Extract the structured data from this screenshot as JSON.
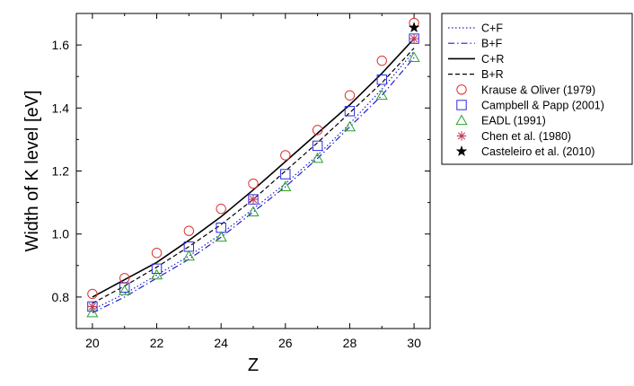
{
  "chart_data": {
    "type": "line",
    "xlabel": "Z",
    "ylabel": "Width of K level [eV]",
    "xlim": [
      19.5,
      30.5
    ],
    "ylim": [
      0.7,
      1.7
    ],
    "xticks": [
      "20",
      "22",
      "24",
      "26",
      "28",
      "30"
    ],
    "yticks": [
      "0.8",
      "1.0",
      "1.2",
      "1.4",
      "1.6"
    ],
    "grid": false,
    "legend_position": "outside-top-right",
    "x": [
      20,
      21,
      22,
      23,
      24,
      25,
      26,
      27,
      28,
      29,
      30
    ],
    "series": [
      {
        "name": "C+F",
        "kind": "line",
        "style": "dotted",
        "color": "#1f1fcc",
        "values": [
          0.76,
          0.81,
          0.87,
          0.93,
          1.0,
          1.08,
          1.16,
          1.25,
          1.35,
          1.46,
          1.58
        ]
      },
      {
        "name": "B+F",
        "kind": "line",
        "style": "dashdot",
        "color": "#1f1fcc",
        "values": [
          0.75,
          0.8,
          0.86,
          0.92,
          0.99,
          1.07,
          1.15,
          1.24,
          1.34,
          1.44,
          1.56
        ]
      },
      {
        "name": "C+R",
        "kind": "line",
        "style": "solid",
        "color": "#000000",
        "values": [
          0.8,
          0.855,
          0.91,
          0.98,
          1.055,
          1.14,
          1.23,
          1.32,
          1.41,
          1.51,
          1.62
        ]
      },
      {
        "name": "B+R",
        "kind": "line",
        "style": "dashed",
        "color": "#000000",
        "values": [
          0.78,
          0.835,
          0.895,
          0.96,
          1.03,
          1.11,
          1.2,
          1.29,
          1.385,
          1.48,
          1.59
        ]
      },
      {
        "name": "Krause & Oliver (1979)",
        "kind": "marker",
        "marker": "circle",
        "color": "#e03030",
        "x": [
          20,
          21,
          22,
          23,
          24,
          25,
          26,
          27,
          28,
          29,
          30
        ],
        "values": [
          0.81,
          0.86,
          0.94,
          1.01,
          1.08,
          1.16,
          1.25,
          1.33,
          1.44,
          1.55,
          1.67
        ]
      },
      {
        "name": "Campbell & Papp (2001)",
        "kind": "marker",
        "marker": "square",
        "color": "#2a2ae0",
        "x": [
          20,
          21,
          22,
          23,
          24,
          25,
          26,
          27,
          28,
          29,
          30
        ],
        "values": [
          0.77,
          0.83,
          0.89,
          0.96,
          1.02,
          1.11,
          1.19,
          1.28,
          1.39,
          1.49,
          1.62
        ]
      },
      {
        "name": "EADL (1991)",
        "kind": "marker",
        "marker": "triangle",
        "color": "#2ca02c",
        "x": [
          20,
          21,
          22,
          23,
          24,
          25,
          26,
          27,
          28,
          29,
          30
        ],
        "values": [
          0.75,
          0.82,
          0.87,
          0.93,
          0.99,
          1.07,
          1.15,
          1.24,
          1.34,
          1.44,
          1.56
        ]
      },
      {
        "name": "Chen et al. (1980)",
        "kind": "marker",
        "marker": "asterisk",
        "color": "#c23b5a",
        "x": [
          20,
          25,
          30
        ],
        "values": [
          0.77,
          1.11,
          1.62
        ]
      },
      {
        "name": "Casteleiro et al. (2010)",
        "kind": "marker",
        "marker": "star",
        "color": "#000000",
        "x": [
          30
        ],
        "values": [
          1.655
        ]
      }
    ]
  }
}
